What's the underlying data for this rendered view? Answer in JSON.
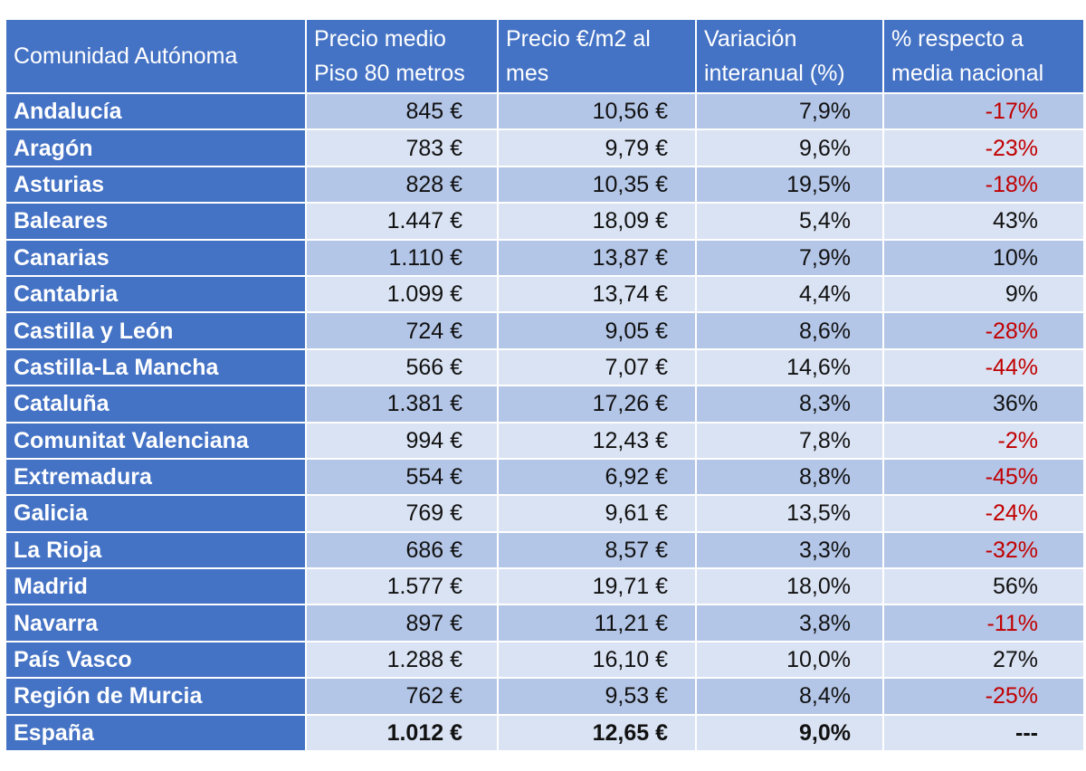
{
  "table": {
    "header": [
      [
        "Comunidad Autónoma"
      ],
      [
        "Precio medio",
        "Piso 80 metros"
      ],
      [
        "Precio €/m2 al",
        "mes"
      ],
      [
        "Variación",
        "interanual (%)"
      ],
      [
        "% respecto a",
        "media nacional"
      ]
    ],
    "rows": [
      [
        "Andalucía",
        "845 €",
        "10,56 €",
        "7,9%",
        "-17%"
      ],
      [
        "Aragón",
        "783 €",
        "9,79 €",
        "9,6%",
        "-23%"
      ],
      [
        "Asturias",
        "828 €",
        "10,35 €",
        "19,5%",
        "-18%"
      ],
      [
        "Baleares",
        "1.447 €",
        "18,09 €",
        "5,4%",
        "43%"
      ],
      [
        "Canarias",
        "1.110 €",
        "13,87 €",
        "7,9%",
        "10%"
      ],
      [
        "Cantabria",
        "1.099 €",
        "13,74 €",
        "4,4%",
        "9%"
      ],
      [
        "Castilla y León",
        "724 €",
        "9,05 €",
        "8,6%",
        "-28%"
      ],
      [
        "Castilla-La Mancha",
        "566 €",
        "7,07 €",
        "14,6%",
        "-44%"
      ],
      [
        "Cataluña",
        "1.381 €",
        "17,26 €",
        "8,3%",
        "36%"
      ],
      [
        "Comunitat Valenciana",
        "994 €",
        "12,43 €",
        "7,8%",
        "-2%"
      ],
      [
        "Extremadura",
        "554 €",
        "6,92 €",
        "8,8%",
        "-45%"
      ],
      [
        "Galicia",
        "769 €",
        "9,61 €",
        "13,5%",
        "-24%"
      ],
      [
        "La Rioja",
        "686 €",
        "8,57 €",
        "3,3%",
        "-32%"
      ],
      [
        "Madrid",
        "1.577 €",
        "19,71 €",
        "18,0%",
        "56%"
      ],
      [
        "Navarra",
        "897 €",
        "11,21 €",
        "3,8%",
        "-11%"
      ],
      [
        "País Vasco",
        "1.288 €",
        "16,10 €",
        "10,0%",
        "27%"
      ],
      [
        "Región de Murcia",
        "762 €",
        "9,53 €",
        "8,4%",
        "-25%"
      ],
      [
        "España",
        "1.012 €",
        "12,65 €",
        "9,0%",
        "---"
      ]
    ]
  }
}
